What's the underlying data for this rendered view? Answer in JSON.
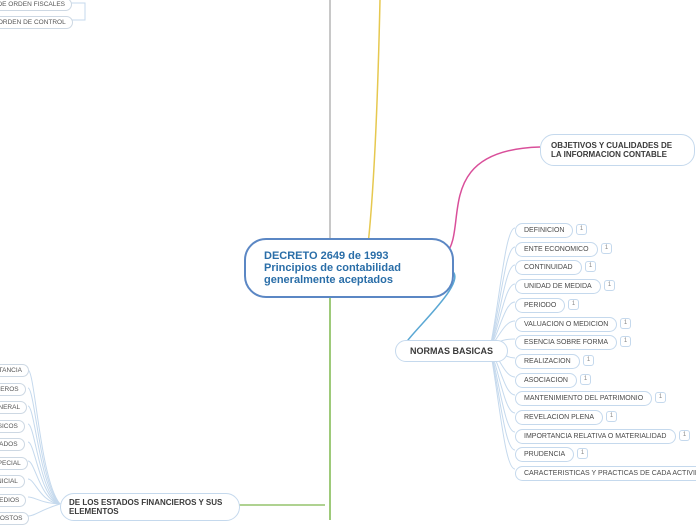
{
  "central": {
    "line1": "DECRETO 2649 de 1993",
    "line2": "Principios de contabilidad",
    "line3": "generalmente aceptados",
    "border": "#5b87c4",
    "text": "#2a6ea8"
  },
  "top_left_leaves": [
    "AS DE ORDEN FISCALES",
    "DE ORDEN DE CONTROL"
  ],
  "right_branch_1": {
    "label": "OBJETIVOS Y CUALIDADES DE LA INFORMACION CONTABLE",
    "connector_color": "#d94f9a"
  },
  "right_branch_2": {
    "label": "NORMAS BASICAS",
    "connector_color": "#5ba8d4",
    "children": [
      "DEFINICION",
      "ENTE ECONOMICO",
      "CONTINUIDAD",
      "UNIDAD DE MEDIDA",
      "PERIODO",
      "VALUACION O MEDICION",
      "ESENCIA SOBRE FORMA",
      "REALIZACION",
      "ASOCIACION",
      "MANTENIMIENTO DEL PATRIMONIO",
      "REVELACION PLENA",
      "IMPORTANCIA RELATIVA O MATERIALIDAD",
      "PRUDENCIA",
      "CARACTERISTICAS Y PRACTICAS DE CADA ACTIVIDAD"
    ]
  },
  "bottom_branch": {
    "label": "DE LOS ESTADOS FINANCIEROS Y SUS ELEMENTOS",
    "connector_color": "#7fb84f",
    "left_children": [
      "ORTANCIA",
      "NCIEROS",
      "GENERAL",
      "BASICOS",
      "LIDADOS",
      "ESPECIAL",
      "E INICIAL",
      "RMEDIOS",
      "E COSTOS"
    ]
  },
  "badge_text": "1",
  "colors": {
    "node_border": "#c5d9ed",
    "yellow_line": "#e6c84f",
    "gray_line": "#b5b5b5"
  }
}
